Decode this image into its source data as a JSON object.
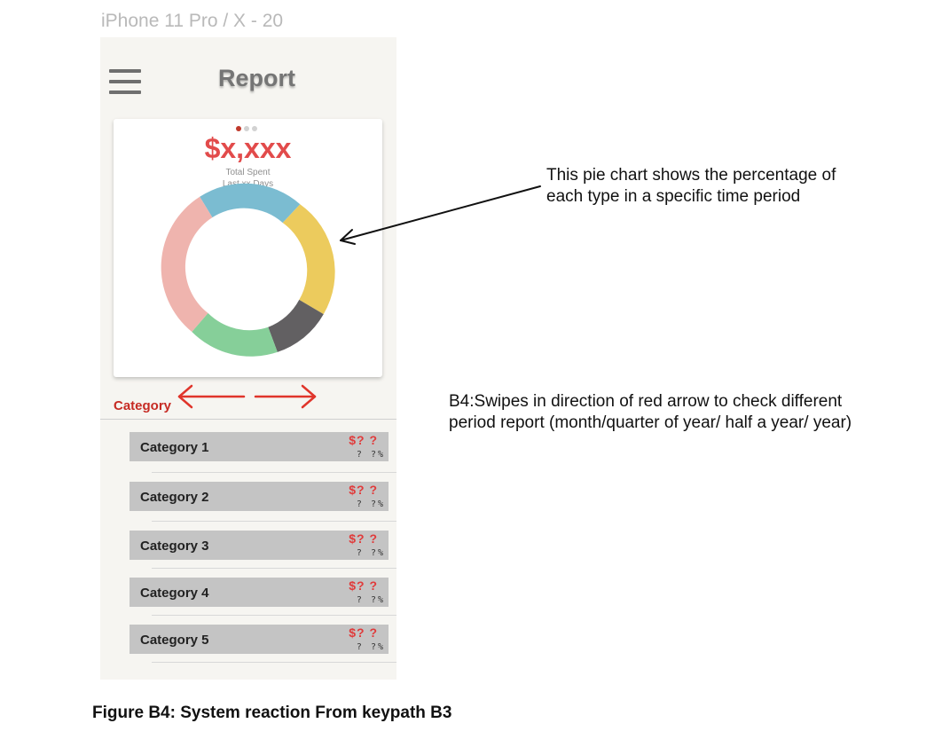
{
  "frame_label": "iPhone 11 Pro / X - 20",
  "header": {
    "title": "Report",
    "menu_icon": "hamburger-menu-icon"
  },
  "summary": {
    "amount": "$x,xxx",
    "label_line1": "Total Spent",
    "label_line2": "Last xx Days",
    "page_indicator": {
      "pages": 3,
      "active": 0
    }
  },
  "donut": {
    "segments": [
      {
        "color": "#7bbcd1"
      },
      {
        "color": "#eccb5d"
      },
      {
        "color": "#626062"
      },
      {
        "color": "#86cf99"
      },
      {
        "color": "#efb4ae"
      }
    ]
  },
  "category_section": {
    "label": "Category",
    "swipe_arrows_color": "#e0352b"
  },
  "categories": [
    {
      "name": "Category 1",
      "amount": "$? ?",
      "percent": "? ?%"
    },
    {
      "name": "Category 2",
      "amount": "$? ?",
      "percent": "? ?%"
    },
    {
      "name": "Category 3",
      "amount": "$? ?",
      "percent": "? ?%"
    },
    {
      "name": "Category 4",
      "amount": "$? ?",
      "percent": "? ?%"
    },
    {
      "name": "Category 5",
      "amount": "$? ?",
      "percent": "? ?%"
    }
  ],
  "annotations": {
    "pie_note_line1": "This pie chart shows the percentage of",
    "pie_note_line2": "each type in a specific time period",
    "swipe_note_line1": "B4:Swipes in direction of red arrow to check different",
    "swipe_note_line2": "period  report (month/quarter of year/ half a year/ year)"
  },
  "caption": "Figure B4: System reaction From keypath B3"
}
